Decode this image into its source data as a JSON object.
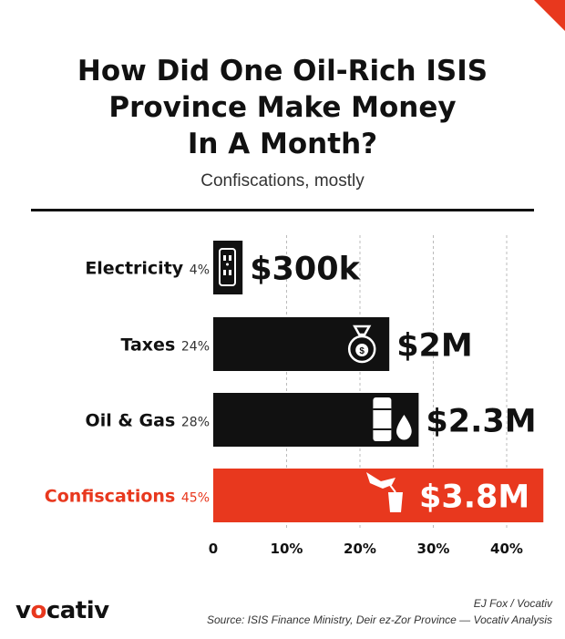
{
  "chart_data": {
    "type": "bar",
    "orientation": "horizontal",
    "title": "How Did One Oil-Rich ISIS Province Make Money In A Month?",
    "subtitle": "Confiscations, mostly",
    "categories": [
      "Electricity",
      "Taxes",
      "Oil & Gas",
      "Confiscations"
    ],
    "values": [
      4,
      24,
      28,
      45
    ],
    "percent_labels": [
      "4%",
      "24%",
      "28%",
      "45%"
    ],
    "amount_labels": [
      "$300k",
      "$2M",
      "$2.3M",
      "$3.8M"
    ],
    "icons": [
      "outlet-icon",
      "money-bag-icon",
      "oil-barrel-icon",
      "hand-taking-icon"
    ],
    "bar_colors": [
      "#111111",
      "#111111",
      "#111111",
      "#e8381e"
    ],
    "highlight_color": "#e8381e",
    "xlim": [
      0,
      45
    ],
    "xticks": [
      0,
      10,
      20,
      30,
      40
    ],
    "xtick_labels": [
      "0",
      "10%",
      "20%",
      "30%",
      "40%"
    ],
    "grid": true
  },
  "footer": {
    "logo_prefix": "v",
    "logo_o": "o",
    "logo_suffix": "cativ",
    "credit": "EJ Fox / Vocativ",
    "source": "Source:  ISIS Finance Ministry, Deir ez-Zor Province — Vocativ Analysis"
  },
  "colors": {
    "text": "#111111",
    "accent": "#e8381e",
    "grid": "#bbbbbb"
  }
}
